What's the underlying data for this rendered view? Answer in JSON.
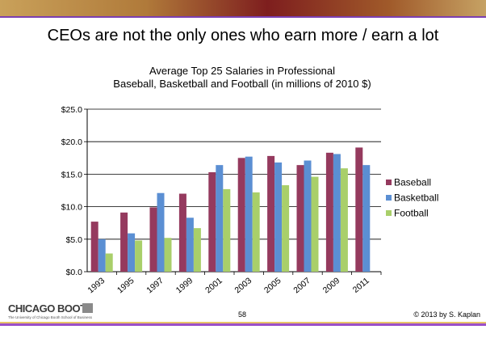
{
  "slide": {
    "title": "CEOs are not the only ones who earn more / earn a lot",
    "page_number": "58",
    "copyright": "© 2013 by S. Kaplan",
    "logo_text": "CHICAGO BOOTH",
    "logo_subtitle": "The University of Chicago Booth School of Business"
  },
  "colors": {
    "baseball": "#953a5e",
    "basketball": "#5b8fd3",
    "football": "#a9cf6a",
    "accent_line": "#7b3fb1"
  },
  "chart_data": {
    "type": "bar",
    "title_line1": "Average Top 25 Salaries in Professional",
    "title_line2": "Baseball, Basketball and Football (in millions of 2010 $)",
    "categories": [
      "1993",
      "1995",
      "1997",
      "1999",
      "2001",
      "2003",
      "2005",
      "2007",
      "2009",
      "2011"
    ],
    "series": [
      {
        "name": "Baseball",
        "values": [
          7.7,
          9.1,
          9.9,
          12.0,
          15.3,
          17.5,
          17.8,
          16.4,
          18.3,
          19.1
        ]
      },
      {
        "name": "Basketball",
        "values": [
          5.0,
          5.9,
          12.1,
          8.3,
          16.4,
          17.7,
          16.8,
          17.1,
          18.1,
          16.4
        ]
      },
      {
        "name": "Football",
        "values": [
          2.8,
          4.8,
          5.2,
          6.7,
          12.7,
          12.2,
          13.3,
          14.6,
          15.9,
          null
        ]
      }
    ],
    "y_ticks": [
      "$0.0",
      "$5.0",
      "$10.0",
      "$15.0",
      "$20.0",
      "$25.0"
    ],
    "ylim": [
      0,
      25
    ],
    "grid": true,
    "legend_position": "right",
    "xlabel": "",
    "ylabel": ""
  }
}
